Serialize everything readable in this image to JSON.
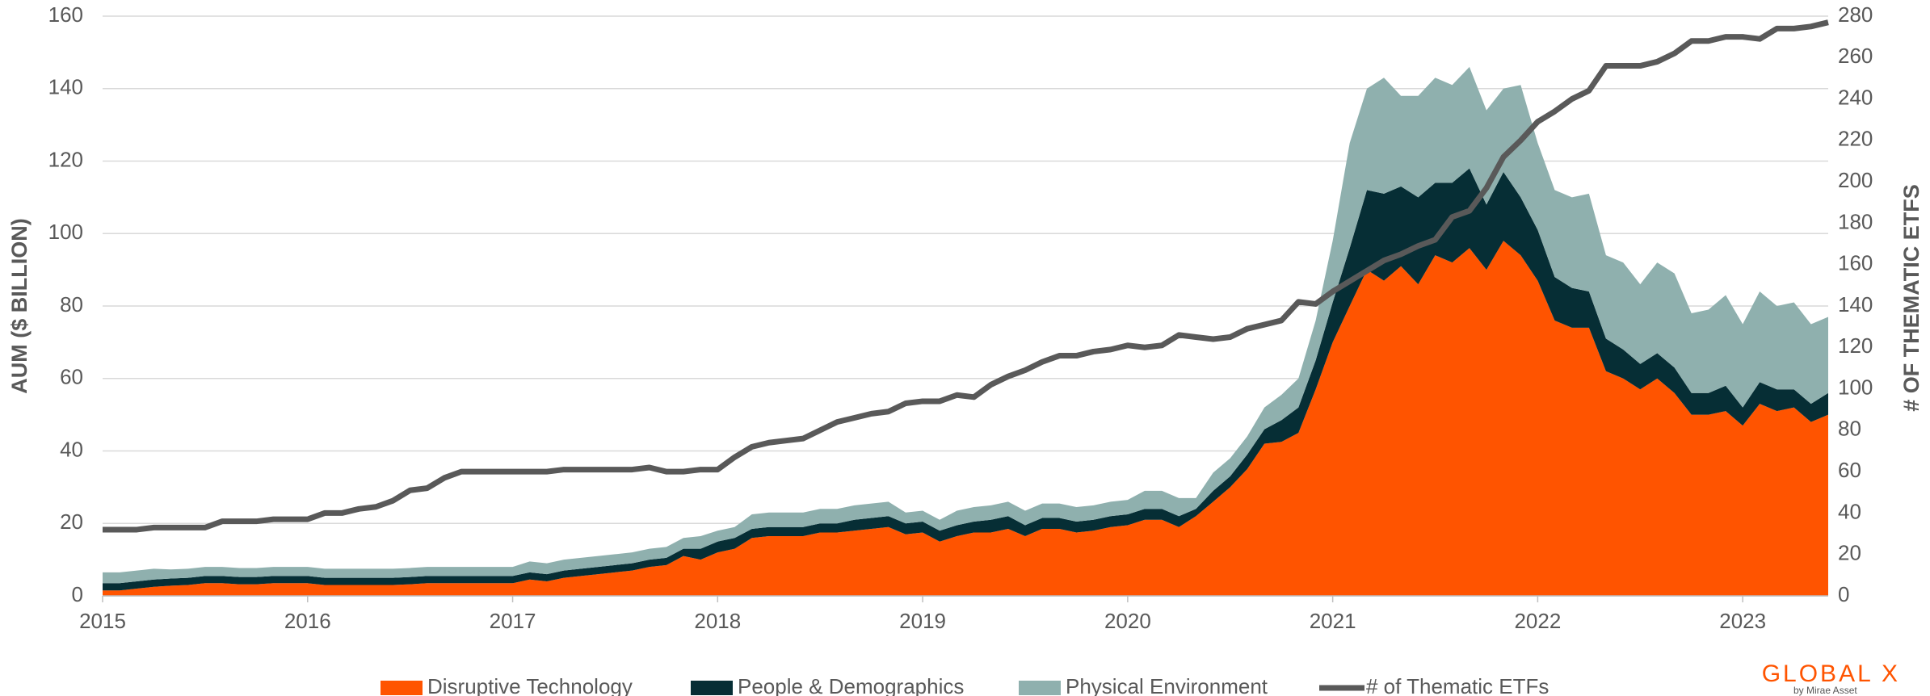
{
  "chart_data": {
    "type": "stacked-area-line",
    "y_axis_label": "AUM ($ BILLION)",
    "y2_axis_label": "# OF THEMATIC ETFS",
    "brand": "GLOBAL X",
    "brand_sub": "by Mirae Asset",
    "xlim": [
      2015,
      2023.417
    ],
    "xticks": [
      2015,
      2016,
      2017,
      2018,
      2019,
      2020,
      2021,
      2022,
      2023
    ],
    "ylim": [
      0,
      160
    ],
    "yticks": [
      0,
      20,
      40,
      60,
      80,
      100,
      120,
      140,
      160
    ],
    "y2lim": [
      0,
      280
    ],
    "y2ticks": [
      0,
      20,
      40,
      60,
      80,
      100,
      120,
      140,
      160,
      180,
      200,
      220,
      240,
      260,
      280
    ],
    "grid": true,
    "legend": "bottom",
    "x": [
      2015,
      2015.083,
      2015.167,
      2015.25,
      2015.333,
      2015.417,
      2015.5,
      2015.583,
      2015.667,
      2015.75,
      2015.833,
      2015.917,
      2016,
      2016.083,
      2016.167,
      2016.25,
      2016.333,
      2016.417,
      2016.5,
      2016.583,
      2016.667,
      2016.75,
      2016.833,
      2016.917,
      2017,
      2017.083,
      2017.167,
      2017.25,
      2017.333,
      2017.417,
      2017.5,
      2017.583,
      2017.667,
      2017.75,
      2017.833,
      2017.917,
      2018,
      2018.083,
      2018.167,
      2018.25,
      2018.333,
      2018.417,
      2018.5,
      2018.583,
      2018.667,
      2018.75,
      2018.833,
      2018.917,
      2019,
      2019.083,
      2019.167,
      2019.25,
      2019.333,
      2019.417,
      2019.5,
      2019.583,
      2019.667,
      2019.75,
      2019.833,
      2019.917,
      2020,
      2020.083,
      2020.167,
      2020.25,
      2020.333,
      2020.417,
      2020.5,
      2020.583,
      2020.667,
      2020.75,
      2020.833,
      2020.917,
      2021,
      2021.083,
      2021.167,
      2021.25,
      2021.333,
      2021.417,
      2021.5,
      2021.583,
      2021.667,
      2021.75,
      2021.833,
      2021.917,
      2022,
      2022.083,
      2022.167,
      2022.25,
      2022.333,
      2022.417,
      2022.5,
      2022.583,
      2022.667,
      2022.75,
      2022.833,
      2022.917,
      2023,
      2023.083,
      2023.167,
      2023.25,
      2023.333,
      2023.417
    ],
    "series": [
      {
        "name": "Disruptive Technology",
        "color": "#ff5400",
        "kind": "area",
        "values": [
          1.5,
          1.5,
          2,
          2.5,
          2.8,
          3,
          3.5,
          3.5,
          3.2,
          3.2,
          3.5,
          3.5,
          3.5,
          3,
          3,
          3,
          3,
          3,
          3.2,
          3.5,
          3.5,
          3.5,
          3.5,
          3.5,
          3.5,
          4.5,
          4,
          5,
          5.5,
          6,
          6.5,
          7,
          8,
          8.5,
          11,
          10,
          12,
          13,
          16,
          16.5,
          16.5,
          16.5,
          17.5,
          17.5,
          18,
          18.5,
          19,
          17,
          17.5,
          15,
          16.5,
          17.5,
          17.5,
          18.5,
          16.5,
          18.5,
          18.5,
          17.5,
          18,
          19,
          19.5,
          21,
          21,
          19,
          22,
          26,
          30,
          35,
          42,
          42.5,
          45,
          57,
          70,
          80,
          90,
          87,
          91,
          86,
          94,
          92,
          96,
          90,
          98,
          94,
          87,
          76,
          74,
          74,
          62,
          60,
          57,
          60,
          56,
          50,
          50,
          51,
          47,
          53,
          51,
          52,
          48,
          50
        ]
      },
      {
        "name": "People & Demographics",
        "color": "#062e35",
        "kind": "area",
        "values": [
          2,
          2,
          2,
          2,
          2,
          2,
          2,
          2,
          2,
          2,
          2,
          2,
          2,
          2,
          2,
          2,
          2,
          2,
          2,
          2,
          2,
          2,
          2,
          2,
          2,
          2,
          2,
          2,
          2,
          2,
          2,
          2,
          2,
          2,
          2,
          3,
          3,
          3,
          2.5,
          2.5,
          2.5,
          2.5,
          2.5,
          2.5,
          3,
          3,
          3,
          3,
          3,
          3,
          3,
          3,
          3.5,
          3.5,
          3,
          3,
          3,
          3,
          3,
          3,
          3,
          3,
          3,
          3,
          2,
          3,
          3,
          4,
          4,
          6,
          7,
          8,
          11,
          16,
          22,
          24,
          22,
          24,
          20,
          22,
          22,
          18,
          19,
          16,
          14,
          12,
          11,
          10,
          9,
          8,
          7,
          7,
          7,
          6,
          6,
          7,
          5,
          6,
          6,
          5,
          5,
          6
        ]
      },
      {
        "name": "Physical Environment",
        "color": "#8fb0ae",
        "kind": "area",
        "values": [
          3,
          3,
          3,
          3,
          2.5,
          2.5,
          2.5,
          2.5,
          2.5,
          2.5,
          2.5,
          2.5,
          2.5,
          2.5,
          2.5,
          2.5,
          2.5,
          2.5,
          2.5,
          2.5,
          2.5,
          2.5,
          2.5,
          2.5,
          2.5,
          3,
          3,
          3,
          3,
          3,
          3,
          3,
          3,
          3,
          3,
          3.5,
          3,
          3,
          4,
          4,
          4,
          4,
          4,
          4,
          4,
          4,
          4,
          3,
          3,
          3,
          4,
          4,
          4,
          4,
          4,
          4,
          4,
          4,
          4,
          4,
          4,
          5,
          5,
          5,
          3,
          5,
          5,
          5,
          6,
          7,
          8,
          11,
          17,
          29,
          28,
          32,
          25,
          28,
          29,
          27,
          28,
          26,
          23,
          31,
          24,
          24,
          25,
          27,
          23,
          24,
          22,
          25,
          26,
          22,
          23,
          25,
          23,
          25,
          23,
          24,
          22,
          21
        ]
      },
      {
        "name": "# of Thematic ETFs",
        "color": "#595959",
        "kind": "line",
        "axis": "y2",
        "values": [
          32,
          32,
          32,
          33,
          33,
          33,
          33,
          36,
          36,
          36,
          37,
          37,
          37,
          40,
          40,
          42,
          43,
          46,
          51,
          52,
          57,
          60,
          60,
          60,
          60,
          60,
          60,
          61,
          61,
          61,
          61,
          61,
          62,
          60,
          60,
          61,
          61,
          67,
          72,
          74,
          75,
          76,
          80,
          84,
          86,
          88,
          89,
          93,
          94,
          94,
          97,
          96,
          102,
          106,
          109,
          113,
          116,
          116,
          118,
          119,
          121,
          120,
          121,
          126,
          125,
          124,
          125,
          129,
          131,
          133,
          142,
          141,
          147,
          152,
          157,
          162,
          165,
          169,
          172,
          183,
          186,
          197,
          212,
          220,
          229,
          234,
          240,
          244,
          256,
          256,
          256,
          258,
          262,
          268,
          268,
          270,
          270,
          269,
          274,
          274,
          275,
          277
        ]
      }
    ]
  }
}
